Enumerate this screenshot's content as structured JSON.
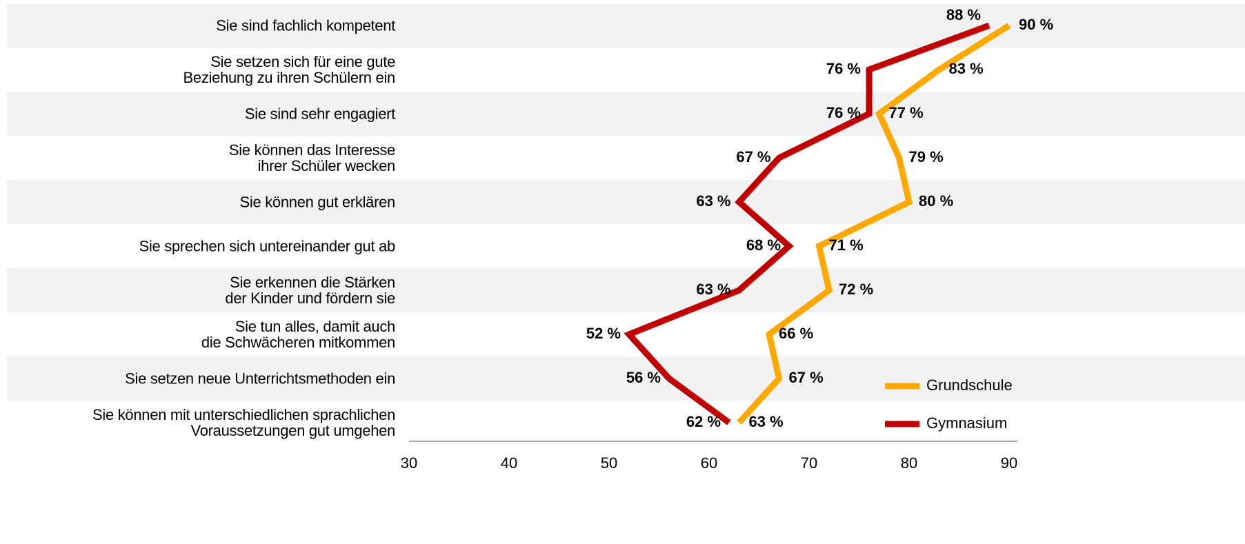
{
  "chart_data": {
    "type": "line",
    "categories": [
      "Sie sind fachlich kompetent",
      "Sie setzen sich für eine gute\nBeziehung zu ihren Schülern ein",
      "Sie sind sehr engagiert",
      "Sie können das Interesse\nihrer Schüler wecken",
      "Sie können gut erklären",
      "Sie sprechen sich untereinander gut ab",
      "Sie erkennen die Stärken\nder Kinder und fördern sie",
      "Sie tun alles, damit auch\ndie Schwächeren mitkommen",
      "Sie setzen neue Unterrichtsmethoden ein",
      "Sie können mit unterschiedlichen sprachlichen\nVoraussetzungen gut umgehen"
    ],
    "series": [
      {
        "name": "Grundschule",
        "color": "#ffa800",
        "values": [
          90,
          83,
          77,
          79,
          80,
          71,
          72,
          66,
          67,
          63
        ],
        "value_labels": [
          "90 %",
          "83 %",
          "77 %",
          "79 %",
          "80 %",
          "71 %",
          "72 %",
          "66 %",
          "67 %",
          "63 %"
        ]
      },
      {
        "name": "Gymnasium",
        "color": "#c00000",
        "values": [
          88,
          76,
          76,
          67,
          63,
          68,
          63,
          52,
          56,
          62
        ],
        "value_labels": [
          "88 %",
          "76 %",
          "76 %",
          "67 %",
          "63 %",
          "68 %",
          "63 %",
          "52 %",
          "56 %",
          "62 %"
        ]
      }
    ],
    "xlim": [
      30,
      90
    ],
    "xticks": [
      30,
      40,
      50,
      60,
      70,
      80,
      90
    ],
    "legend": "lower right"
  }
}
